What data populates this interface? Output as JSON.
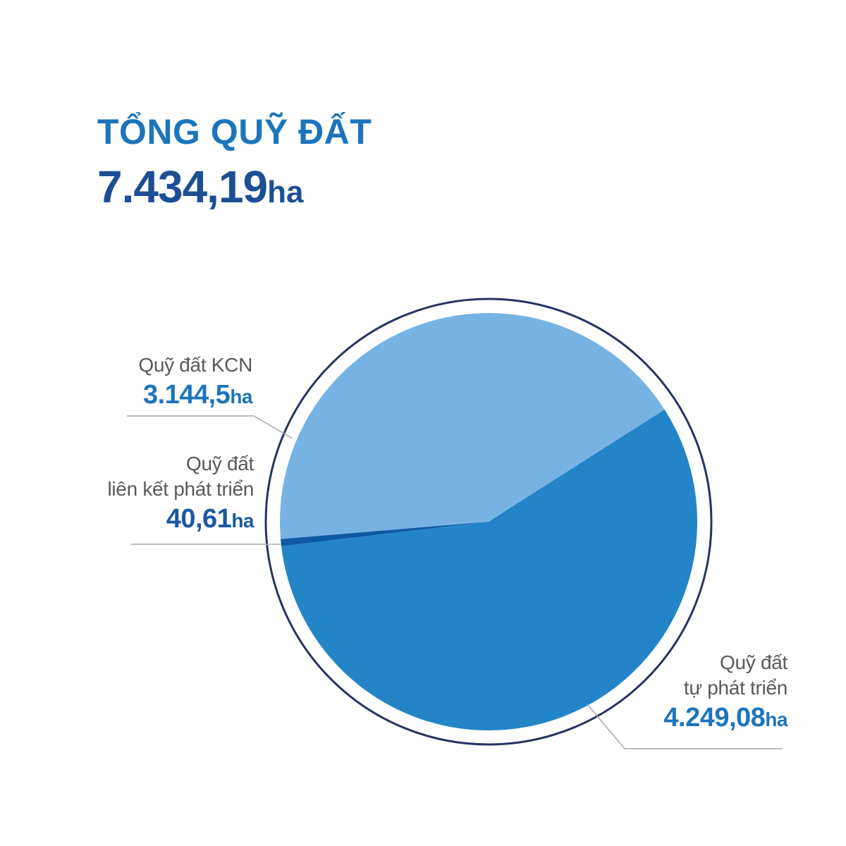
{
  "header": {
    "title": "TỔNG QUỸ ĐẤT",
    "total_value": "7.434,19",
    "unit": "ha"
  },
  "chart_data": {
    "type": "pie",
    "title": "TỔNG QUỸ ĐẤT",
    "total_label": "7.434,19ha",
    "total_value": 7434.19,
    "unit": "ha",
    "legend_position": "callout-labels",
    "series": [
      {
        "name": "Quỹ đất KCN",
        "label_lines": [
          "Quỹ đất KCN"
        ],
        "value": 3144.5,
        "display_value": "3.144,5",
        "percent": 42.3,
        "color": "#77B3E2",
        "value_text_color": "#1C75BC"
      },
      {
        "name": "Quỹ đất liên kết phát triển",
        "label_lines": [
          "Quỹ đất",
          "liên kết phát triển"
        ],
        "value": 40.61,
        "display_value": "40,61",
        "percent": 0.55,
        "color": "#0F59A3",
        "value_text_color": "#1B59A0"
      },
      {
        "name": "Quỹ đất tự phát triển",
        "label_lines": [
          "Quỹ đất",
          "tự phát triển"
        ],
        "value": 4249.08,
        "display_value": "4.249,08",
        "percent": 57.15,
        "color": "#2385C7",
        "value_text_color": "#1C75BC"
      }
    ],
    "layout": {
      "start_angle_deg": 32.5,
      "direction": "ccw",
      "center": [
        693,
        740
      ],
      "radius": 296,
      "ring_radius": 316
    }
  },
  "colors": {
    "title_blue": "#1C75BC",
    "dark_blue": "#1D4F94",
    "label_gray": "#58595B",
    "ring_navy": "#263461",
    "leader_gray": "#A8A8A8",
    "background": "#FFFFFF"
  }
}
